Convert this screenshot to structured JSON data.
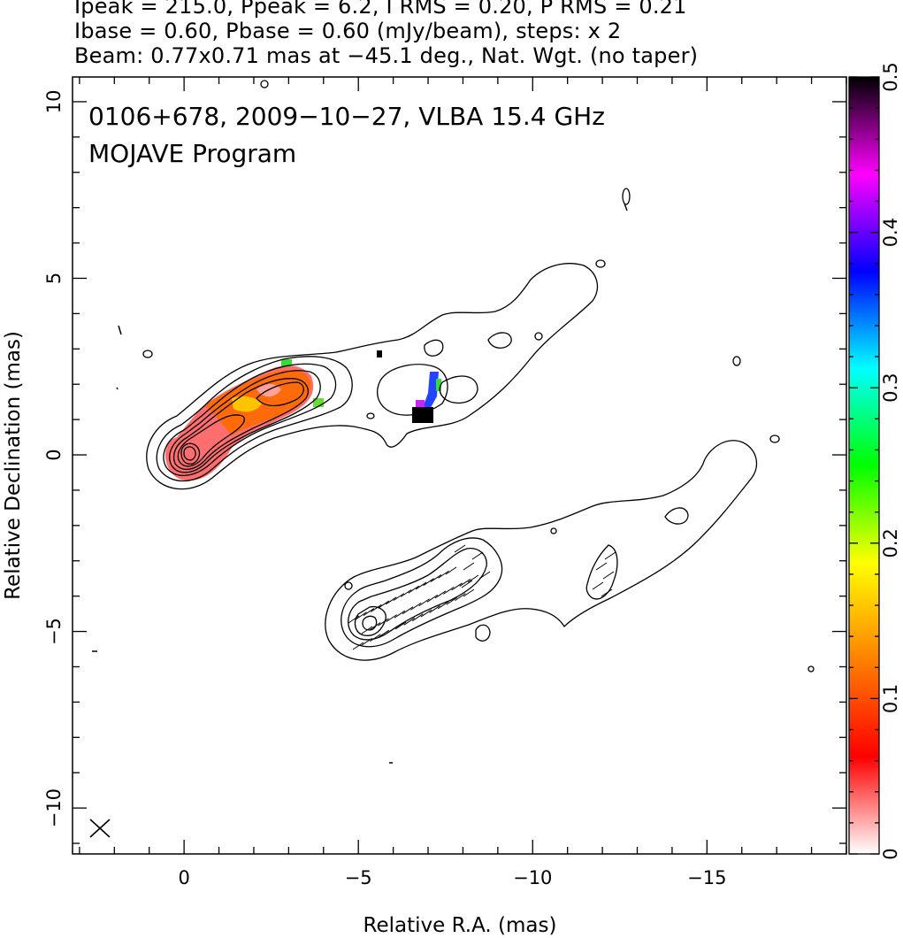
{
  "header": {
    "line1": "Ipeak = 215.0, Ppeak = 6.2, I RMS = 0.20, P RMS = 0.21",
    "line2": "Ibase = 0.60, Pbase = 0.60 (mJy/beam), steps: x 2",
    "line3": "Beam: 0.77x0.71 mas at −45.1 deg., Nat. Wgt. (no taper)"
  },
  "chart_data": {
    "type": "heatmap",
    "title": "0106+678, 2009−10−27, VLBA 15.4 GHz",
    "subtitle": "MOJAVE Program",
    "xlabel": "Relative R.A. (mas)",
    "ylabel": "Relative Declination (mas)",
    "xlim": [
      3.2,
      -19.0
    ],
    "ylim": [
      -11.3,
      10.7
    ],
    "x_ticks": [
      0,
      -5,
      -10,
      -15
    ],
    "x_tick_labels": [
      "0",
      "−5",
      "−10",
      "−15"
    ],
    "y_ticks": [
      10,
      5,
      0,
      -5,
      -10
    ],
    "y_tick_labels": [
      "10",
      "5",
      "0",
      "−5",
      "−10"
    ],
    "colorbar": {
      "min": 0,
      "max": 0.5,
      "ticks": [
        0,
        0.1,
        0.2,
        0.3,
        0.4,
        0.5
      ],
      "tick_labels": [
        "0",
        "0.1",
        "0.2",
        "0.3",
        "0.4",
        "0.5"
      ],
      "colors": [
        "#ffffff",
        "#ff0000",
        "#ff8000",
        "#ffff00",
        "#00ff00",
        "#00ffff",
        "#0000ff",
        "#ff00ff",
        "#000000"
      ]
    },
    "images": [
      {
        "name": "total intensity with fractional polarization",
        "center": [
          0,
          0
        ]
      },
      {
        "name": "polarized intensity with EVPA ticks",
        "center": [
          -5.1,
          -4.85
        ]
      }
    ],
    "beam": {
      "major_mas": 0.77,
      "minor_mas": 0.71,
      "pa_deg": -45.1
    }
  }
}
